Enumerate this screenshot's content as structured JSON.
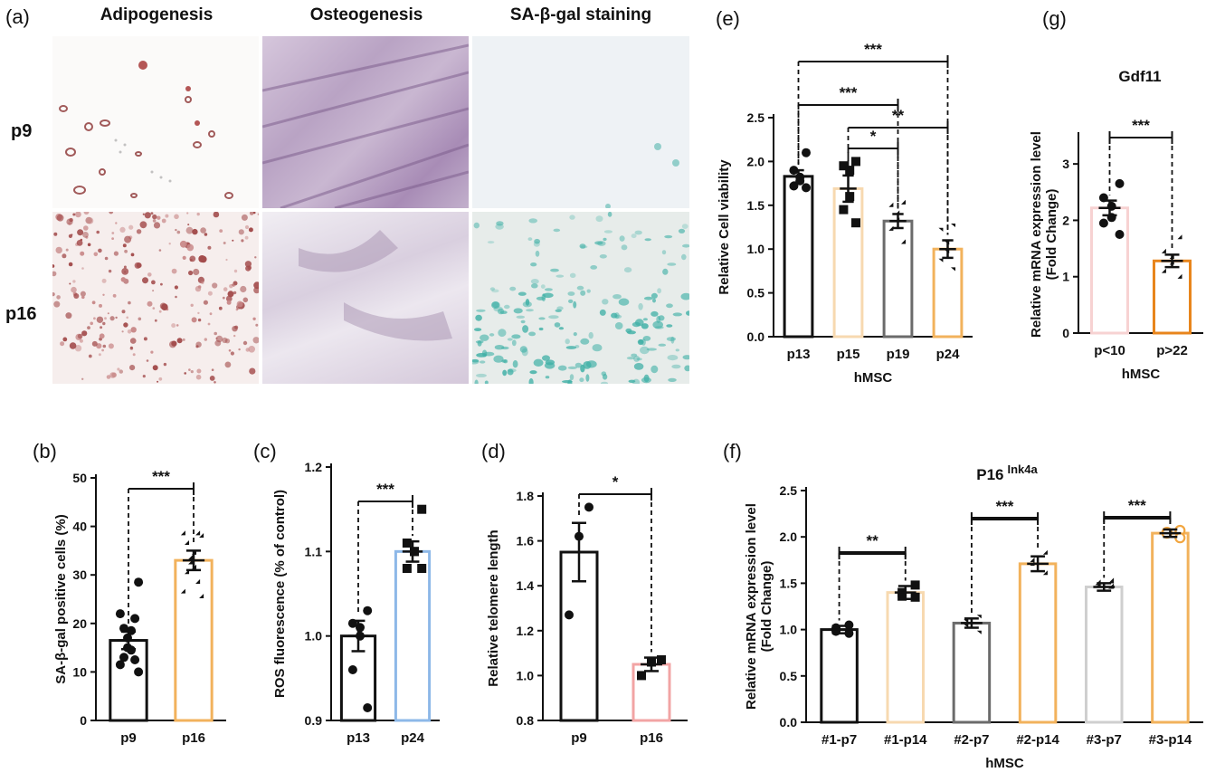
{
  "panel_a": {
    "label": "(a)",
    "columns": [
      "Adipogenesis",
      "Osteogenesis",
      "SA-β-gal staining"
    ],
    "rows": [
      "p9",
      "p16"
    ]
  },
  "colors": {
    "black": "#111111",
    "peach": "#f7d9b0",
    "orange": "#f2b25c",
    "gray": "#6b6b6b",
    "lightgray": "#cfcfcf",
    "pink": "#f2a4a4",
    "lightpink": "#f7d2d2",
    "blue": "#8db8e8",
    "darkorange": "#e8851c"
  },
  "chart_data": [
    {
      "id": "b",
      "panel_label": "(b)",
      "type": "bar",
      "title": "",
      "xlabel": "",
      "ylabel": "SA-β-gal positive cells (%)",
      "ylim": [
        0,
        50
      ],
      "yticks": [
        0,
        10,
        20,
        30,
        40,
        50
      ],
      "categories": [
        "p9",
        "p16"
      ],
      "values": [
        16.5,
        33
      ],
      "sem": [
        1.8,
        2.0
      ],
      "bar_colors": [
        "#111111",
        "#f2b25c"
      ],
      "markers": [
        "circle",
        "triangle"
      ],
      "points": [
        [
          28.5,
          22,
          21,
          19,
          18.5,
          17,
          15,
          14.5,
          13,
          12.5,
          11.5,
          10
        ],
        [
          37.5,
          38,
          38,
          36,
          34,
          33,
          32,
          31,
          30,
          28,
          26,
          25
        ]
      ],
      "significance": [
        {
          "from": 0,
          "to": 1,
          "text": "***"
        }
      ]
    },
    {
      "id": "c",
      "panel_label": "(c)",
      "type": "bar",
      "title": "",
      "xlabel": "",
      "ylabel": "ROS fluorescence (% of control)",
      "ylim": [
        0.9,
        1.2
      ],
      "yticks": [
        0.9,
        1.0,
        1.1,
        1.2
      ],
      "categories": [
        "p13",
        "p24"
      ],
      "values": [
        1.0,
        1.1
      ],
      "sem": [
        0.018,
        0.012
      ],
      "bar_colors": [
        "#111111",
        "#8db8e8"
      ],
      "markers": [
        "circle",
        "square"
      ],
      "points": [
        [
          1.03,
          1.015,
          1.01,
          1.0,
          0.96,
          0.915
        ],
        [
          1.15,
          1.11,
          1.1,
          1.1,
          1.08,
          1.08
        ]
      ],
      "significance": [
        {
          "from": 0,
          "to": 1,
          "text": "***"
        }
      ]
    },
    {
      "id": "d",
      "panel_label": "(d)",
      "type": "bar",
      "title": "",
      "xlabel": "",
      "ylabel": "Relative telomere length",
      "ylim": [
        0.8,
        1.8
      ],
      "yticks": [
        0.8,
        1.0,
        1.2,
        1.4,
        1.6,
        1.8
      ],
      "categories": [
        "p9",
        "p16"
      ],
      "values": [
        1.55,
        1.05
      ],
      "sem": [
        0.13,
        0.03
      ],
      "bar_colors": [
        "#111111",
        "#f2a4a4"
      ],
      "markers": [
        "circle",
        "square"
      ],
      "points": [
        [
          1.75,
          1.62,
          1.27
        ],
        [
          1.07,
          1.06,
          1.0
        ]
      ],
      "significance": [
        {
          "from": 0,
          "to": 1,
          "text": "*"
        }
      ]
    },
    {
      "id": "e",
      "panel_label": "(e)",
      "type": "bar",
      "title": "",
      "xlabel": "hMSC",
      "ylabel": "Relative Cell viability",
      "ylim": [
        0,
        2.5
      ],
      "yticks": [
        0.0,
        0.5,
        1.0,
        1.5,
        2.0,
        2.5
      ],
      "categories": [
        "p13",
        "p15",
        "p19",
        "p24"
      ],
      "values": [
        1.83,
        1.69,
        1.32,
        1.0
      ],
      "sem": [
        0.07,
        0.15,
        0.08,
        0.1
      ],
      "bar_colors": [
        "#111111",
        "#f7d9b0",
        "#6b6b6b",
        "#f2b25c"
      ],
      "markers": [
        "circle",
        "square",
        "triangle",
        "triangle-down"
      ],
      "points": [
        [
          2.1,
          1.9,
          1.82,
          1.78,
          1.72,
          1.7
        ],
        [
          2.0,
          1.95,
          1.9,
          1.6,
          1.45,
          1.3
        ],
        [
          1.5,
          1.47,
          1.38,
          1.3,
          1.2,
          1.05
        ],
        [
          1.25,
          1.2,
          1.05,
          0.95,
          0.85,
          0.75
        ]
      ],
      "significance": [
        {
          "from": 0,
          "to": 3,
          "text": "***"
        },
        {
          "from": 0,
          "to": 2,
          "text": "***"
        },
        {
          "from": 1,
          "to": 3,
          "text": "**"
        },
        {
          "from": 1,
          "to": 2,
          "text": "*"
        }
      ]
    },
    {
      "id": "g",
      "panel_label": "(g)",
      "type": "bar",
      "title": "Gdf11",
      "xlabel": "hMSC",
      "ylabel": "Relative  mRNA expression level\n(Fold Change)",
      "ylim": [
        0,
        3.5
      ],
      "yticks": [
        0,
        1,
        2,
        3
      ],
      "categories": [
        "p<10",
        "p>22"
      ],
      "values": [
        2.22,
        1.28
      ],
      "sem": [
        0.13,
        0.11
      ],
      "bar_colors": [
        "#f7d2d2",
        "#e8851c"
      ],
      "markers": [
        "circle",
        "triangle"
      ],
      "points": [
        [
          2.65,
          2.4,
          2.25,
          2.05,
          1.95,
          1.75
        ],
        [
          1.65,
          1.4,
          1.3,
          1.2,
          1.05,
          0.95
        ]
      ],
      "significance": [
        {
          "from": 0,
          "to": 1,
          "text": "***"
        }
      ]
    },
    {
      "id": "f",
      "panel_label": "(f)",
      "type": "bar",
      "title": "P16",
      "title_superscript": "Ink4a",
      "xlabel": "hMSC",
      "ylabel": "Relative  mRNA expression level\n(Fold Change)",
      "ylim": [
        0,
        2.5
      ],
      "yticks": [
        0.0,
        0.5,
        1.0,
        1.5,
        2.0,
        2.5
      ],
      "categories": [
        "#1-p7",
        "#1-p14",
        "#2-p7",
        "#2-p14",
        "#3-p7",
        "#3-p14"
      ],
      "values": [
        1.0,
        1.4,
        1.07,
        1.71,
        1.46,
        2.04
      ],
      "sem": [
        0.04,
        0.07,
        0.05,
        0.08,
        0.04,
        0.04
      ],
      "bar_colors": [
        "#111111",
        "#f7d9b0",
        "#6b6b6b",
        "#f2b25c",
        "#cfcfcf",
        "#f2b25c"
      ],
      "markers": [
        "circle",
        "square",
        "triangle-down",
        "triangle",
        "diamond",
        "hollow-circle"
      ],
      "points": [
        [
          1.05,
          1.02,
          0.98,
          0.96
        ],
        [
          1.48,
          1.4,
          1.36,
          1.35
        ],
        [
          1.12,
          1.07,
          1.02,
          0.95
        ],
        [
          1.8,
          1.72,
          1.68,
          1.58
        ],
        [
          1.5,
          1.48,
          1.45,
          1.44
        ],
        [
          2.07,
          2.05,
          2.04,
          1.99
        ]
      ],
      "significance": [
        {
          "from": 0,
          "to": 1,
          "text": "**"
        },
        {
          "from": 2,
          "to": 3,
          "text": "***"
        },
        {
          "from": 4,
          "to": 5,
          "text": "***"
        }
      ]
    }
  ]
}
